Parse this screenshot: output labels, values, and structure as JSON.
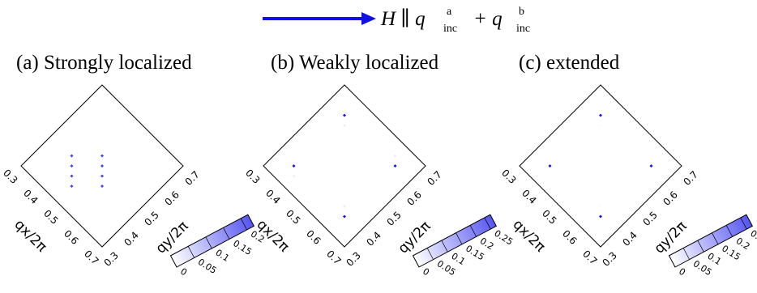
{
  "header": {
    "field_label": "H ∥ q",
    "sup_a": "a",
    "sub_inc": "inc",
    "plus": "+ q",
    "sup_b": "b",
    "arrow_color": "#1010e0"
  },
  "colors": {
    "high": "#0d0dec",
    "low": "#ffffff",
    "outline": "#000000"
  },
  "chart_data": [
    {
      "type": "heatmap",
      "panel_label": "(a) Strongly localized",
      "xlabel": "qx/2π",
      "ylabel": "qy/2π",
      "x_ticks": [
        "0.3",
        "0.4",
        "0.5",
        "0.6",
        "0.7"
      ],
      "y_ticks": [
        "0.3",
        "0.4",
        "0.5",
        "0.6",
        "0.7"
      ],
      "xlim": [
        0.3,
        0.7
      ],
      "ylim": [
        0.3,
        0.7
      ],
      "colorbar": {
        "ticks": [
          "0",
          "0.05",
          "0.1",
          "0.15",
          "0.2"
        ],
        "range": [
          0,
          0.22
        ]
      },
      "points": [
        {
          "qx": 0.4,
          "qy": 0.45,
          "value": 0.17
        },
        {
          "qx": 0.425,
          "qy": 0.425,
          "value": 0.17
        },
        {
          "qx": 0.45,
          "qy": 0.4,
          "value": 0.17
        },
        {
          "qx": 0.475,
          "qy": 0.375,
          "value": 0.17
        },
        {
          "qx": 0.475,
          "qy": 0.525,
          "value": 0.17
        },
        {
          "qx": 0.5,
          "qy": 0.5,
          "value": 0.17
        },
        {
          "qx": 0.525,
          "qy": 0.475,
          "value": 0.17
        },
        {
          "qx": 0.55,
          "qy": 0.45,
          "value": 0.17
        }
      ]
    },
    {
      "type": "heatmap",
      "panel_label": "(b) Weakly localized",
      "xlabel": "qx/2π",
      "ylabel": "qy/2π",
      "x_ticks": [
        "0.3",
        "0.4",
        "0.5",
        "0.6",
        "0.7"
      ],
      "y_ticks": [
        "0.3",
        "0.4",
        "0.5",
        "0.6",
        "0.7"
      ],
      "xlim": [
        0.3,
        0.7
      ],
      "ylim": [
        0.3,
        0.7
      ],
      "colorbar": {
        "ticks": [
          "0",
          "0.05",
          "0.1",
          "0.15",
          "0.2",
          "0.25"
        ],
        "range": [
          0,
          0.27
        ]
      },
      "points": [
        {
          "qx": 0.375,
          "qy": 0.375,
          "value": 0.26
        },
        {
          "qx": 0.4,
          "qy": 0.35,
          "value": 0.02
        },
        {
          "qx": 0.375,
          "qy": 0.625,
          "value": 0.26
        },
        {
          "qx": 0.4,
          "qy": 0.6,
          "value": 0.02
        },
        {
          "qx": 0.625,
          "qy": 0.375,
          "value": 0.26
        },
        {
          "qx": 0.6,
          "qy": 0.4,
          "value": 0.02
        },
        {
          "qx": 0.625,
          "qy": 0.625,
          "value": 0.26
        },
        {
          "qx": 0.6,
          "qy": 0.65,
          "value": 0.02
        }
      ]
    },
    {
      "type": "heatmap",
      "panel_label": "(c) extended",
      "xlabel": "qx/2π",
      "ylabel": "qy/2π",
      "x_ticks": [
        "0.3",
        "0.4",
        "0.5",
        "0.6",
        "0.7"
      ],
      "y_ticks": [
        "0.3",
        "0.4",
        "0.5",
        "0.6",
        "0.7"
      ],
      "xlim": [
        0.3,
        0.7
      ],
      "ylim": [
        0.3,
        0.7
      ],
      "colorbar": {
        "ticks": [
          "0",
          "0.05",
          "0.1",
          "0.15",
          "0.2",
          "0.25"
        ],
        "range": [
          0,
          0.27
        ]
      },
      "points": [
        {
          "qx": 0.375,
          "qy": 0.375,
          "value": 0.26
        },
        {
          "qx": 0.375,
          "qy": 0.625,
          "value": 0.26
        },
        {
          "qx": 0.625,
          "qy": 0.375,
          "value": 0.26
        },
        {
          "qx": 0.625,
          "qy": 0.625,
          "value": 0.26
        },
        {
          "qx": 0.4,
          "qy": 0.6,
          "value": 0.005
        },
        {
          "qx": 0.6,
          "qy": 0.4,
          "value": 0.005
        }
      ]
    }
  ]
}
